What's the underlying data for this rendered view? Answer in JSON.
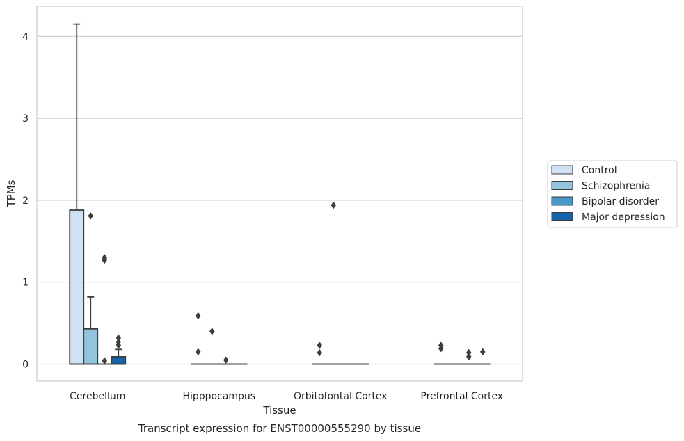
{
  "chart_data": {
    "type": "box",
    "title": "",
    "caption": "Transcript expression for ENST00000555290 by tissue",
    "xlabel": "Tissue",
    "ylabel": "TPMs",
    "ylim": [
      -0.2,
      4.35
    ],
    "yticks": [
      0,
      1,
      2,
      3,
      4
    ],
    "grid": true,
    "legend_position": "right",
    "categories": [
      "Cerebellum",
      "Hipppocampus",
      "Orbitofontal Cortex",
      "Prefrontal Cortex"
    ],
    "series": [
      {
        "name": "Control",
        "color": "#cfe1f2",
        "boxes": [
          {
            "q1": 0,
            "median": 0,
            "q3": 1.88,
            "whisker_low": 0,
            "whisker_high": 4.15,
            "outliers": []
          },
          {
            "q1": 0,
            "median": 0,
            "q3": 0,
            "whisker_low": 0,
            "whisker_high": 0,
            "outliers": [
              0.15,
              0.59
            ]
          },
          {
            "q1": 0,
            "median": 0,
            "q3": 0,
            "whisker_low": 0,
            "whisker_high": 0,
            "outliers": [
              0.14,
              0.23
            ]
          },
          {
            "q1": 0,
            "median": 0,
            "q3": 0,
            "whisker_low": 0,
            "whisker_high": 0,
            "outliers": [
              0.19,
              0.23
            ]
          }
        ]
      },
      {
        "name": "Schizophrenia",
        "color": "#93c4de",
        "boxes": [
          {
            "q1": 0,
            "median": 0,
            "q3": 0.43,
            "whisker_low": 0,
            "whisker_high": 0.82,
            "outliers": [
              1.81
            ]
          },
          {
            "q1": 0,
            "median": 0,
            "q3": 0,
            "whisker_low": 0,
            "whisker_high": 0,
            "outliers": [
              0.4
            ]
          },
          {
            "q1": 0,
            "median": 0,
            "q3": 0,
            "whisker_low": 0,
            "whisker_high": 0,
            "outliers": [
              1.94
            ]
          },
          {
            "q1": 0,
            "median": 0,
            "q3": 0,
            "whisker_low": 0,
            "whisker_high": 0,
            "outliers": []
          }
        ]
      },
      {
        "name": "Bipolar disorder",
        "color": "#4a98c9",
        "boxes": [
          {
            "q1": 0,
            "median": 0,
            "q3": 0,
            "whisker_low": 0,
            "whisker_high": 0,
            "outliers": [
              0.04,
              1.27,
              1.3
            ]
          },
          {
            "q1": 0,
            "median": 0,
            "q3": 0,
            "whisker_low": 0,
            "whisker_high": 0,
            "outliers": [
              0.05
            ]
          },
          {
            "q1": 0,
            "median": 0,
            "q3": 0,
            "whisker_low": 0,
            "whisker_high": 0,
            "outliers": []
          },
          {
            "q1": 0,
            "median": 0,
            "q3": 0,
            "whisker_low": 0,
            "whisker_high": 0,
            "outliers": [
              0.09,
              0.14
            ]
          }
        ]
      },
      {
        "name": "Major depression",
        "color": "#1764ab",
        "boxes": [
          {
            "q1": 0,
            "median": 0,
            "q3": 0.09,
            "whisker_low": 0,
            "whisker_high": 0.18,
            "outliers": [
              0.23,
              0.27,
              0.32
            ]
          },
          {
            "q1": 0,
            "median": 0,
            "q3": 0,
            "whisker_low": 0,
            "whisker_high": 0,
            "outliers": []
          },
          {
            "q1": 0,
            "median": 0,
            "q3": 0,
            "whisker_low": 0,
            "whisker_high": 0,
            "outliers": []
          },
          {
            "q1": 0,
            "median": 0,
            "q3": 0,
            "whisker_low": 0,
            "whisker_high": 0,
            "outliers": [
              0.15
            ]
          }
        ]
      }
    ]
  }
}
